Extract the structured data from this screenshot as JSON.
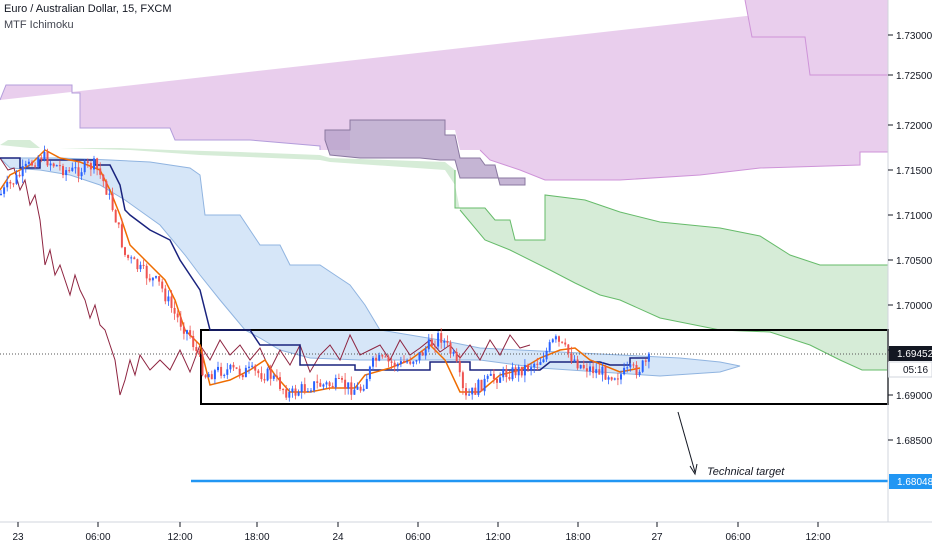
{
  "header": {
    "symbol_title": "Euro / Australian Dollar, 15, FXCM",
    "indicator_name": "MTF Ichimoku"
  },
  "chart_data": {
    "type": "candlestick",
    "y_axis": {
      "range": [
        1.676,
        1.734
      ],
      "ticks": [
        "1.73000",
        "1.72500",
        "1.72000",
        "1.71500",
        "1.71000",
        "1.70500",
        "1.70000",
        "1.69500",
        "1.69000",
        "1.68500"
      ]
    },
    "x_axis": {
      "ticks": [
        "23",
        "06:00",
        "12:00",
        "18:00",
        "24",
        "06:00",
        "12:00",
        "18:00",
        "27",
        "06:00",
        "12:00"
      ]
    },
    "price_labels": {
      "last_price": "1.69452",
      "countdown": "05:16",
      "target_price": "1.68048"
    },
    "annotation": "Technical target",
    "colors": {
      "up": "#2962ff",
      "down": "#ef5350",
      "cloud_purple": "#e1bee7",
      "cloud_green": "#c8e6c9",
      "cloud_blue": "#cfe2f7",
      "kijun": "#1a237e",
      "tenkan": "#ef6c00",
      "chikou": "#8e2440",
      "target_line": "#2196f3"
    }
  }
}
